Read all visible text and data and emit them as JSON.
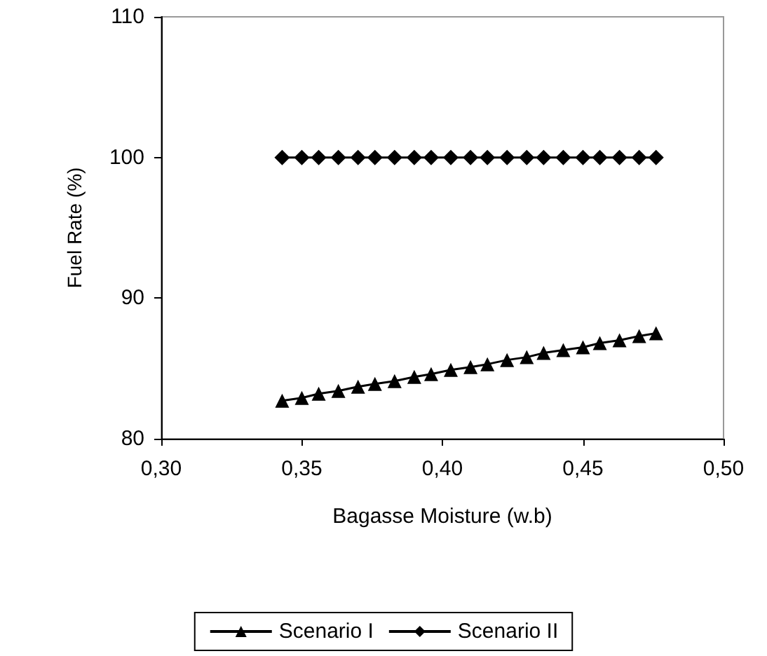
{
  "chart_data": {
    "type": "line",
    "xlabel": "Bagasse Moisture (w.b)",
    "ylabel": "Fuel Rate (%)",
    "x": [
      0.343,
      0.35,
      0.356,
      0.363,
      0.37,
      0.376,
      0.383,
      0.39,
      0.396,
      0.403,
      0.41,
      0.416,
      0.423,
      0.43,
      0.436,
      0.443,
      0.45,
      0.456,
      0.463,
      0.47,
      0.476
    ],
    "series": [
      {
        "name": "Scenario I",
        "color": "#000000",
        "marker": "triangle",
        "values": [
          82.7,
          82.9,
          83.2,
          83.4,
          83.7,
          83.9,
          84.1,
          84.4,
          84.6,
          84.9,
          85.1,
          85.3,
          85.6,
          85.8,
          86.1,
          86.3,
          86.5,
          86.8,
          87.0,
          87.3,
          87.5
        ]
      },
      {
        "name": "Scenario II",
        "color": "#000000",
        "marker": "diamond",
        "values": [
          100,
          100,
          100,
          100,
          100,
          100,
          100,
          100,
          100,
          100,
          100,
          100,
          100,
          100,
          100,
          100,
          100,
          100,
          100,
          100,
          100
        ]
      }
    ],
    "xlim": [
      0.3,
      0.5
    ],
    "xticks": [
      {
        "value": 0.3,
        "label": "0,30"
      },
      {
        "value": 0.35,
        "label": "0,35"
      },
      {
        "value": 0.4,
        "label": "0,40"
      },
      {
        "value": 0.45,
        "label": "0,45"
      },
      {
        "value": 0.5,
        "label": "0,50"
      }
    ],
    "ylim": [
      80,
      110
    ],
    "yticks": [
      80,
      90,
      100,
      110
    ],
    "grid": false,
    "legend": "bottom",
    "line_style": "solid"
  }
}
